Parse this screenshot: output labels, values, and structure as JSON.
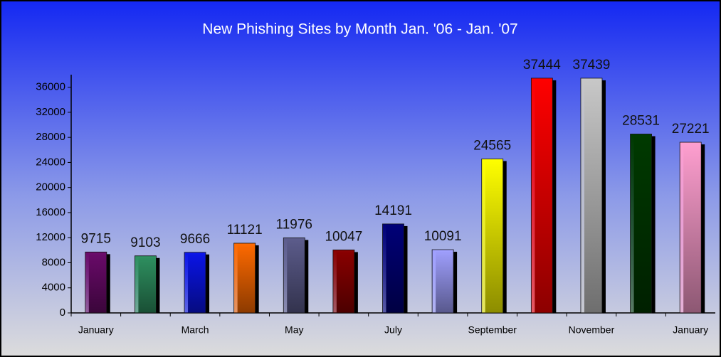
{
  "chart_data": {
    "type": "bar",
    "title": "New Phishing Sites by Month Jan. '06 - Jan. '07",
    "categories": [
      "January",
      null,
      "March",
      null,
      "May",
      null,
      "July",
      null,
      "September",
      null,
      "November",
      null,
      "January"
    ],
    "values": [
      9715,
      9103,
      9666,
      11121,
      11976,
      10047,
      14191,
      10091,
      24565,
      37444,
      37439,
      28531,
      27221
    ],
    "colors": [
      "#6a0a6a",
      "#2e9060",
      "#0a14e8",
      "#ff6a00",
      "#5c5c8c",
      "#8a0000",
      "#000078",
      "#a0a0ff",
      "#ffff00",
      "#ff0000",
      "#c8c8c8",
      "#003a00",
      "#ff9fd0"
    ],
    "ylim": [
      0,
      38000
    ],
    "yticks": [
      0,
      4000,
      8000,
      12000,
      16000,
      20000,
      24000,
      28000,
      32000,
      36000
    ],
    "grid": false
  }
}
